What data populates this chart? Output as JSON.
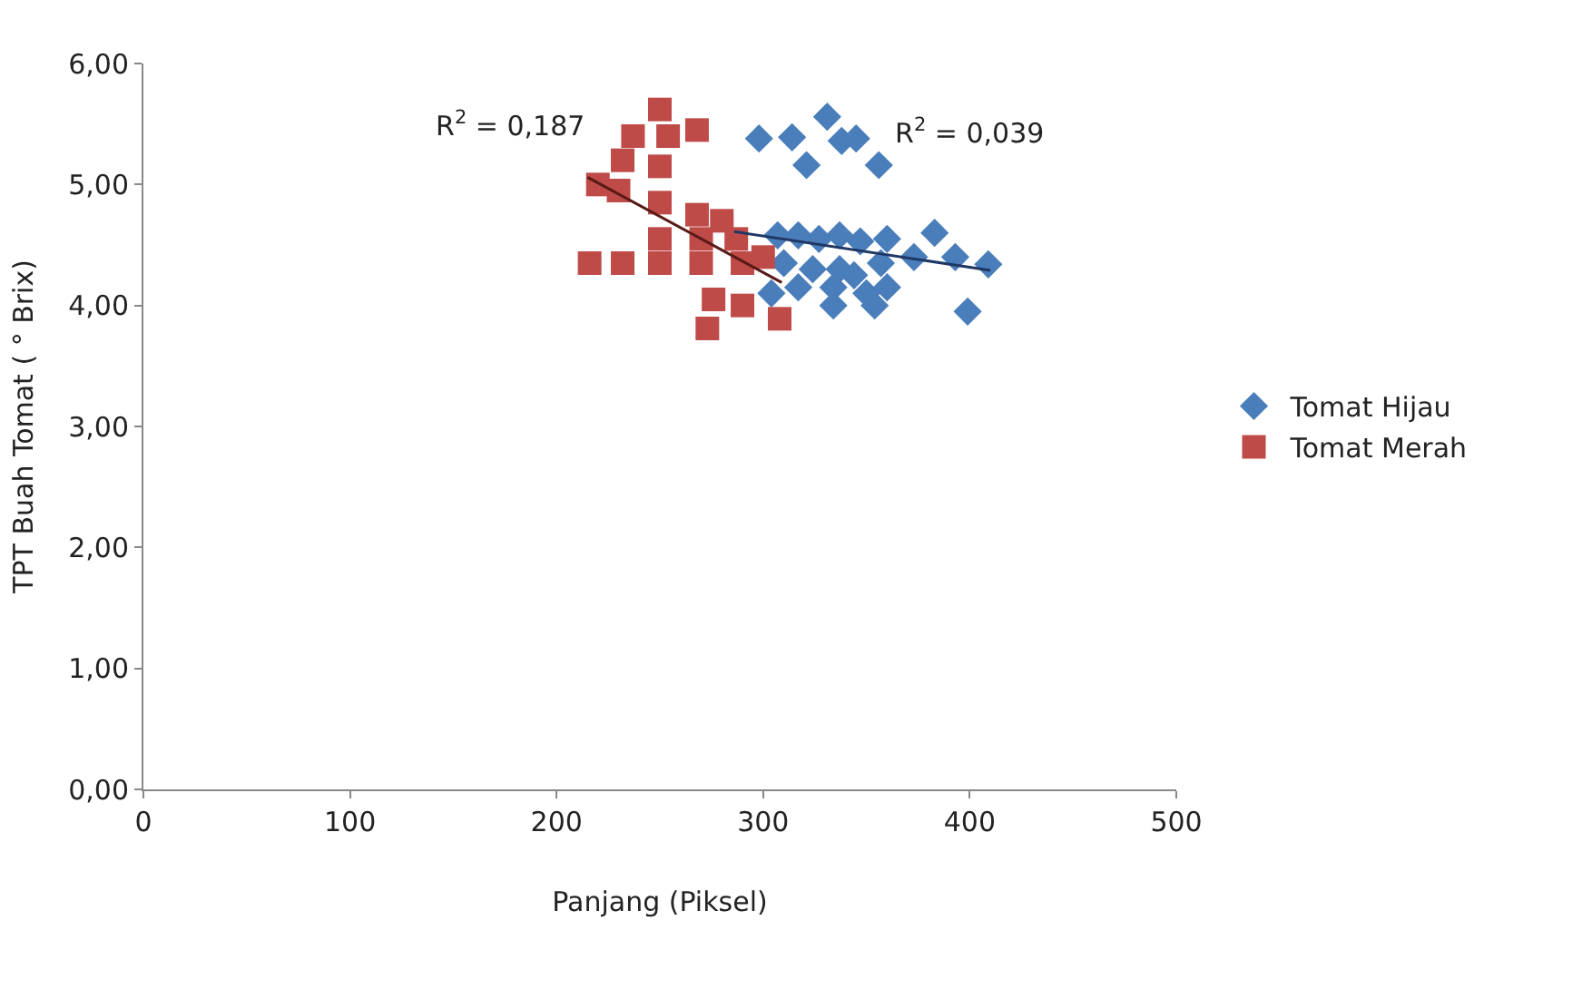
{
  "chart_data": {
    "type": "scatter",
    "xlabel": "Panjang (Piksel)",
    "ylabel": "TPT Buah Tomat ( ° Brix)",
    "xlim": [
      0,
      500
    ],
    "xticks": [
      0,
      100,
      200,
      300,
      400,
      500
    ],
    "ylim": [
      0,
      6
    ],
    "yticks": [
      {
        "value": 0,
        "label": "0,00"
      },
      {
        "value": 1,
        "label": "1,00"
      },
      {
        "value": 2,
        "label": "2,00"
      },
      {
        "value": 3,
        "label": "3,00"
      },
      {
        "value": 4,
        "label": "4,00"
      },
      {
        "value": 5,
        "label": "5,00"
      },
      {
        "value": 6,
        "label": "6,00"
      }
    ],
    "legend": "right",
    "series": [
      {
        "name": "Tomat Hijau",
        "color": "#4a7ebb",
        "marker": "diamond",
        "x": [
          298,
          314,
          331,
          338,
          345,
          321,
          356,
          307,
          317,
          327,
          337,
          347,
          360,
          383,
          409,
          310,
          324,
          337,
          357,
          373,
          393,
          317,
          334,
          344,
          350,
          360,
          304,
          334,
          354,
          399
        ],
        "values": [
          5.38,
          5.39,
          5.56,
          5.36,
          5.38,
          5.16,
          5.16,
          4.58,
          4.58,
          4.55,
          4.58,
          4.53,
          4.55,
          4.6,
          4.34,
          4.35,
          4.3,
          4.3,
          4.35,
          4.4,
          4.4,
          4.15,
          4.15,
          4.25,
          4.1,
          4.15,
          4.1,
          4.0,
          4.0,
          3.95
        ]
      },
      {
        "name": "Tomat Merah",
        "color": "#be4b48",
        "marker": "square",
        "x": [
          250,
          237,
          254,
          268,
          232,
          250,
          230,
          220,
          250,
          268,
          280,
          250,
          270,
          287,
          216,
          232,
          250,
          270,
          290,
          300,
          276,
          273,
          308,
          290
        ],
        "values": [
          5.62,
          5.4,
          5.4,
          5.45,
          5.2,
          5.15,
          4.95,
          5.0,
          4.85,
          4.75,
          4.7,
          4.55,
          4.55,
          4.55,
          4.35,
          4.35,
          4.35,
          4.35,
          4.35,
          4.4,
          4.05,
          3.81,
          3.89,
          4.0
        ]
      },
      {
        "type": "line",
        "color": "#5a1a18",
        "marker": "none",
        "x": [
          215,
          309
        ],
        "values": [
          5.06,
          4.19
        ]
      },
      {
        "type": "line",
        "color": "#1f3864",
        "marker": "none",
        "x": [
          286,
          410
        ],
        "values": [
          4.61,
          4.29
        ]
      }
    ],
    "annotations": [
      "R$^{2}$ = 0,187",
      "R$^{2}$ = 0,039"
    ]
  }
}
